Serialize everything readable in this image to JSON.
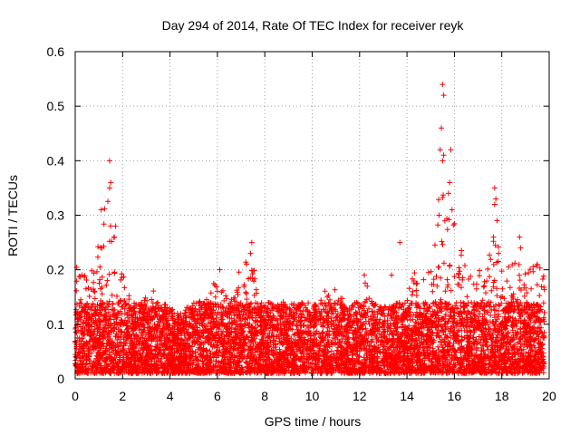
{
  "chart_data": {
    "type": "scatter",
    "title": "Day 294 of 2014, Rate Of TEC Index for receiver reyk",
    "xlabel": "GPS time / hours",
    "ylabel": "ROTI / TECUs",
    "xlim": [
      0,
      20
    ],
    "ylim": [
      0,
      0.6
    ],
    "xticks": [
      "0",
      "2",
      "4",
      "6",
      "8",
      "10",
      "12",
      "14",
      "16",
      "18",
      "20"
    ],
    "yticks": [
      "0",
      "0.1",
      "0.2",
      "0.3",
      "0.4",
      "0.5",
      "0.6"
    ],
    "grid": true,
    "marker": "+",
    "color": "#ff0000",
    "series": [
      {
        "name": "ROTI",
        "envelope": {
          "x": [
            0,
            0.2,
            0.5,
            0.8,
            1.0,
            1.2,
            1.4,
            1.5,
            1.6,
            1.8,
            2.0,
            2.3,
            2.6,
            3.0,
            3.3,
            3.6,
            4.0,
            4.5,
            5.0,
            5.5,
            6.0,
            6.3,
            6.6,
            7.0,
            7.3,
            7.6,
            8.0,
            8.5,
            9.0,
            9.5,
            10.0,
            10.5,
            11.0,
            11.5,
            12.0,
            12.3,
            12.6,
            13.0,
            13.5,
            14.0,
            14.3,
            14.6,
            15.0,
            15.3,
            15.5,
            15.7,
            16.0,
            16.5,
            17.0,
            17.4,
            17.7,
            18.0,
            18.5,
            19.0,
            19.5,
            19.8
          ],
          "ymax": [
            0.22,
            0.2,
            0.19,
            0.22,
            0.25,
            0.3,
            0.36,
            0.33,
            0.28,
            0.25,
            0.2,
            0.15,
            0.14,
            0.15,
            0.17,
            0.14,
            0.12,
            0.11,
            0.14,
            0.15,
            0.19,
            0.16,
            0.15,
            0.21,
            0.25,
            0.2,
            0.14,
            0.13,
            0.15,
            0.14,
            0.14,
            0.16,
            0.17,
            0.14,
            0.14,
            0.19,
            0.13,
            0.12,
            0.14,
            0.15,
            0.2,
            0.16,
            0.25,
            0.33,
            0.45,
            0.36,
            0.29,
            0.2,
            0.2,
            0.22,
            0.3,
            0.2,
            0.22,
            0.2,
            0.21,
            0.2
          ]
        },
        "peaks": [
          {
            "x": 1.45,
            "y": 0.4
          },
          {
            "x": 1.5,
            "y": 0.36
          },
          {
            "x": 1.45,
            "y": 0.35
          },
          {
            "x": 1.1,
            "y": 0.31
          },
          {
            "x": 1.7,
            "y": 0.28
          },
          {
            "x": 1.65,
            "y": 0.26
          },
          {
            "x": 6.1,
            "y": 0.2
          },
          {
            "x": 7.45,
            "y": 0.25
          },
          {
            "x": 7.4,
            "y": 0.23
          },
          {
            "x": 13.7,
            "y": 0.25
          },
          {
            "x": 15.5,
            "y": 0.54
          },
          {
            "x": 15.55,
            "y": 0.52
          },
          {
            "x": 15.45,
            "y": 0.46
          },
          {
            "x": 15.4,
            "y": 0.42
          },
          {
            "x": 15.5,
            "y": 0.4
          },
          {
            "x": 15.85,
            "y": 0.42
          },
          {
            "x": 15.8,
            "y": 0.36
          },
          {
            "x": 15.75,
            "y": 0.34
          },
          {
            "x": 15.9,
            "y": 0.31
          },
          {
            "x": 15.35,
            "y": 0.3
          },
          {
            "x": 17.7,
            "y": 0.35
          },
          {
            "x": 17.75,
            "y": 0.33
          },
          {
            "x": 17.7,
            "y": 0.32
          },
          {
            "x": 17.8,
            "y": 0.29
          },
          {
            "x": 17.65,
            "y": 0.26
          },
          {
            "x": 18.75,
            "y": 0.26
          },
          {
            "x": 18.8,
            "y": 0.24
          },
          {
            "x": 13.35,
            "y": 0.19
          },
          {
            "x": 12.2,
            "y": 0.19
          },
          {
            "x": 19.5,
            "y": 0.21
          }
        ]
      }
    ]
  }
}
